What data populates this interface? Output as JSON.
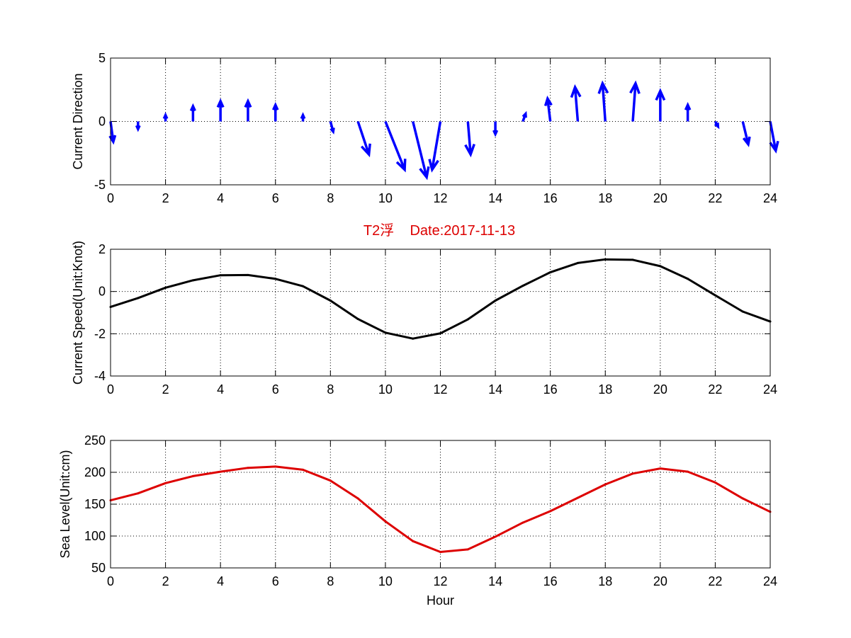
{
  "figure_title": "T2浮    Date:2017-11-13",
  "colors": {
    "quiver": "#0000ff",
    "speed": "#000000",
    "sea_level": "#dd0000",
    "title": "#dd0000"
  },
  "chart_data": [
    {
      "type": "quiver",
      "ylabel": "Current Direction",
      "xlabel": "",
      "xlim": [
        0,
        24
      ],
      "ylim": [
        -5,
        5
      ],
      "xticks": [
        0,
        2,
        4,
        6,
        8,
        10,
        12,
        14,
        16,
        18,
        20,
        22,
        24
      ],
      "yticks": [
        -5,
        0,
        5
      ],
      "grid": true,
      "x": [
        0,
        1,
        2,
        3,
        4,
        5,
        6,
        7,
        8,
        9,
        10,
        11,
        12,
        13,
        14,
        15,
        16,
        17,
        18,
        19,
        20,
        21,
        22,
        23,
        24
      ],
      "u": [
        0.1,
        0.0,
        0.0,
        0.0,
        0.0,
        0.0,
        0.0,
        0.0,
        0.1,
        0.4,
        0.7,
        0.5,
        -0.3,
        0.1,
        0.0,
        0.1,
        -0.1,
        -0.1,
        -0.1,
        0.1,
        0.0,
        0.0,
        0.1,
        0.2,
        0.2
      ],
      "v": [
        -1.6,
        -0.6,
        0.5,
        1.2,
        1.6,
        1.6,
        1.3,
        0.5,
        -0.8,
        -2.6,
        -3.8,
        -4.4,
        -3.8,
        -2.6,
        -1.0,
        0.6,
        1.8,
        2.7,
        3.0,
        3.0,
        2.4,
        1.3,
        -0.4,
        -1.8,
        -2.3
      ]
    },
    {
      "type": "line",
      "ylabel": "Current Speed(Unit:Knot)",
      "xlabel": "",
      "xlim": [
        0,
        24
      ],
      "ylim": [
        -4,
        2
      ],
      "xticks": [
        0,
        2,
        4,
        6,
        8,
        10,
        12,
        14,
        16,
        18,
        20,
        22,
        24
      ],
      "yticks": [
        -4,
        -2,
        0,
        2
      ],
      "grid": true,
      "x": [
        0,
        1,
        2,
        3,
        4,
        5,
        6,
        7,
        8,
        9,
        10,
        11,
        12,
        13,
        14,
        15,
        16,
        17,
        18,
        19,
        20,
        21,
        22,
        23,
        24
      ],
      "y": [
        -0.73,
        -0.31,
        0.18,
        0.53,
        0.77,
        0.78,
        0.6,
        0.25,
        -0.43,
        -1.3,
        -1.95,
        -2.23,
        -1.98,
        -1.32,
        -0.43,
        0.27,
        0.91,
        1.35,
        1.52,
        1.5,
        1.2,
        0.6,
        -0.18,
        -0.95,
        -1.42
      ]
    },
    {
      "type": "line",
      "ylabel": "Sea Level(Unit:cm)",
      "xlabel": "Hour",
      "xlim": [
        0,
        24
      ],
      "ylim": [
        50,
        250
      ],
      "xticks": [
        0,
        2,
        4,
        6,
        8,
        10,
        12,
        14,
        16,
        18,
        20,
        22,
        24
      ],
      "yticks": [
        50,
        100,
        150,
        200,
        250
      ],
      "grid": true,
      "x": [
        0,
        1,
        2,
        3,
        4,
        5,
        6,
        7,
        8,
        9,
        10,
        11,
        12,
        13,
        14,
        15,
        16,
        17,
        18,
        19,
        20,
        21,
        22,
        23,
        24
      ],
      "y": [
        156,
        167,
        183,
        194,
        201,
        207,
        209,
        204,
        187,
        159,
        123,
        92,
        75,
        79,
        99,
        121,
        139,
        160,
        181,
        198,
        206,
        201,
        184,
        159,
        138
      ]
    }
  ]
}
